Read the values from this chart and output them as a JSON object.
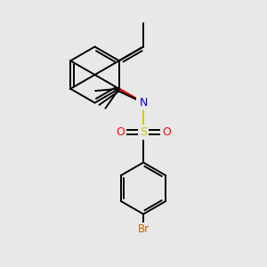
{
  "bg_color": "#e8e8e8",
  "bond_color": "#000000",
  "bond_lw": 1.4,
  "atom_colors": {
    "N": "#0000cc",
    "O": "#ff0000",
    "S": "#cccc00",
    "Br": "#cc6600"
  },
  "figsize": [
    3.0,
    3.0
  ],
  "dpi": 100,
  "xlim": [
    0,
    10
  ],
  "ylim": [
    0,
    10
  ]
}
